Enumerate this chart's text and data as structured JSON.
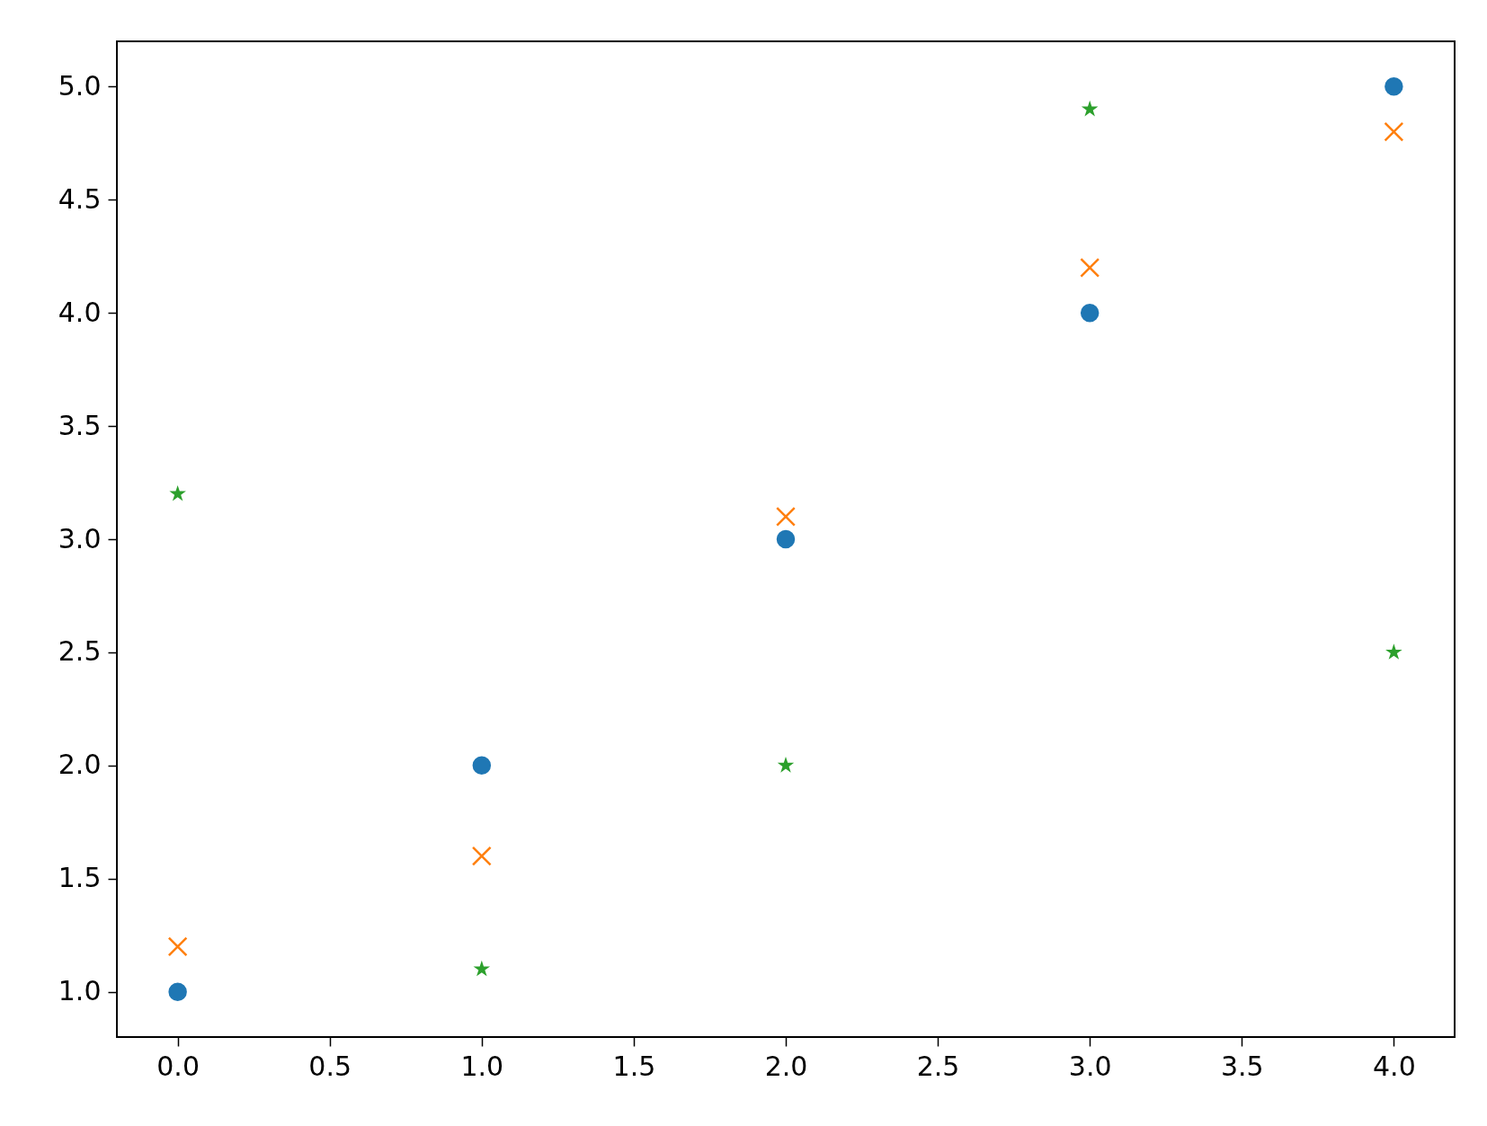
{
  "chart_data": {
    "type": "scatter",
    "x": [
      0,
      1,
      2,
      3,
      4
    ],
    "series": [
      {
        "color": "#1f77b4",
        "marker": "circle",
        "values": [
          1,
          2,
          3,
          4,
          5
        ]
      },
      {
        "color": "#ff7f0e",
        "marker": "cross",
        "values": [
          1.2,
          1.6,
          3.1,
          4.2,
          4.8
        ]
      },
      {
        "color": "#2ca02c",
        "marker": "star",
        "values": [
          3.2,
          1.1,
          2.0,
          4.9,
          2.5
        ]
      }
    ],
    "xlim": [
      -0.2,
      4.2
    ],
    "ylim": [
      0.8,
      5.2
    ],
    "xticks": [
      {
        "value": 0,
        "label": "0.0"
      },
      {
        "value": 0.5,
        "label": "0.5"
      },
      {
        "value": 1,
        "label": "1.0"
      },
      {
        "value": 1.5,
        "label": "1.5"
      },
      {
        "value": 2,
        "label": "2.0"
      },
      {
        "value": 2.5,
        "label": "2.5"
      },
      {
        "value": 3,
        "label": "3.0"
      },
      {
        "value": 3.5,
        "label": "3.5"
      },
      {
        "value": 4,
        "label": "4.0"
      }
    ],
    "yticks": [
      {
        "value": 1,
        "label": "1.0"
      },
      {
        "value": 1.5,
        "label": "1.5"
      },
      {
        "value": 2,
        "label": "2.0"
      },
      {
        "value": 2.5,
        "label": "2.5"
      },
      {
        "value": 3,
        "label": "3.0"
      },
      {
        "value": 3.5,
        "label": "3.5"
      },
      {
        "value": 4,
        "label": "4.0"
      },
      {
        "value": 4.5,
        "label": "4.5"
      },
      {
        "value": 5,
        "label": "5.0"
      }
    ],
    "grid": false
  }
}
